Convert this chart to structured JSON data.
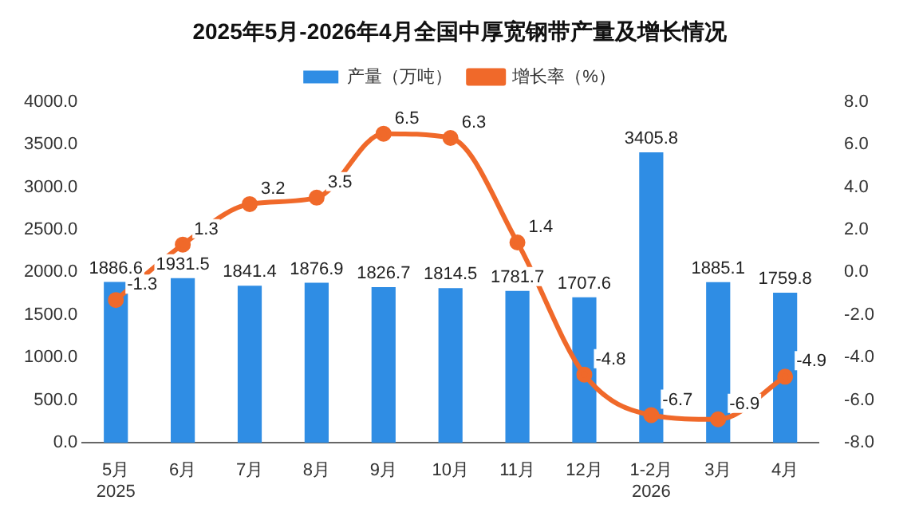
{
  "chart_data": {
    "type": "bar",
    "title": "2025年5月-2026年4月全国中厚宽钢带产量及增长情况",
    "categories": [
      "5月\n2025",
      "6月",
      "7月",
      "8月",
      "9月",
      "10月",
      "11月",
      "12月",
      "1-2月\n2026",
      "3月",
      "4月"
    ],
    "series": [
      {
        "name": "产量（万吨）",
        "color": "#2f8de4",
        "values": [
          1886.6,
          1931.5,
          1841.4,
          1876.9,
          1826.7,
          1814.5,
          1781.7,
          1707.6,
          3405.8,
          1885.1,
          1759.8
        ]
      },
      {
        "name": "增长率（%）",
        "type": "line",
        "axis": "y2",
        "color": "#f0692a",
        "values": [
          -1.3,
          1.3,
          3.2,
          3.5,
          6.5,
          6.3,
          1.4,
          -4.8,
          -6.7,
          -6.9,
          -4.9
        ]
      }
    ],
    "ylim": [
      0,
      4000
    ],
    "yticks": [
      {
        "value": 0,
        "label": "0.0"
      },
      {
        "value": 500,
        "label": "500.0"
      },
      {
        "value": 1000,
        "label": "1000.0"
      },
      {
        "value": 1500,
        "label": "1500.0"
      },
      {
        "value": 2000,
        "label": "2000.0"
      },
      {
        "value": 2500,
        "label": "2500.0"
      },
      {
        "value": 3000,
        "label": "3000.0"
      },
      {
        "value": 3500,
        "label": "3500.0"
      },
      {
        "value": 4000,
        "label": "4000.0"
      }
    ],
    "y2lim": [
      -8,
      8
    ],
    "y2ticks": [
      {
        "value": -8,
        "label": "-8.0"
      },
      {
        "value": -6,
        "label": "-6.0"
      },
      {
        "value": -4,
        "label": "-4.0"
      },
      {
        "value": -2,
        "label": "-2.0"
      },
      {
        "value": 0,
        "label": "0.0"
      },
      {
        "value": 2,
        "label": "2.0"
      },
      {
        "value": 4,
        "label": "4.0"
      },
      {
        "value": 6,
        "label": "6.0"
      },
      {
        "value": 8,
        "label": "8.0"
      }
    ],
    "legend": "top",
    "marker": "circle",
    "line_style": "solid",
    "grid": false,
    "data_labels": true
  }
}
